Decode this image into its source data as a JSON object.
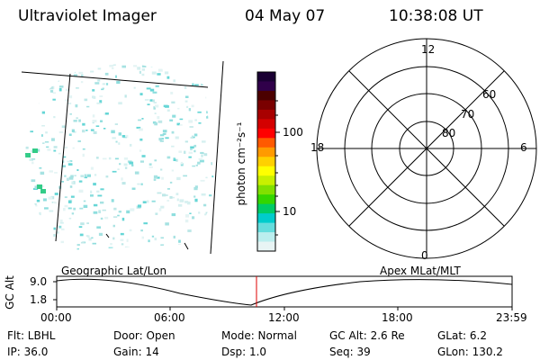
{
  "header": {
    "title": "Ultraviolet Imager",
    "date": "04 May 07",
    "time": "10:38:08 UT"
  },
  "colorbar": {
    "unit_label": "photon cm⁻²s⁻¹",
    "ticks": [
      "100",
      "10"
    ],
    "colors": [
      "#1a0033",
      "#30004a",
      "#4b0000",
      "#7a0000",
      "#a80000",
      "#d40000",
      "#ff0000",
      "#ff5a00",
      "#ff9a00",
      "#ffd000",
      "#ffff00",
      "#c8f000",
      "#80e000",
      "#33d600",
      "#00cc66",
      "#00cccc",
      "#66dddd",
      "#bbeeee",
      "#e8f4f4"
    ]
  },
  "polar": {
    "mlt_labels": {
      "top": "12",
      "left": "18",
      "right": "6",
      "bottom": "0"
    },
    "lat_labels": [
      "60",
      "70",
      "80"
    ]
  },
  "timeline": {
    "axis_title": "GC Alt",
    "y_labels": [
      "9.0",
      "1.8"
    ],
    "left_title": "Geographic Lat/Lon",
    "right_title": "Apex  MLat/MLT",
    "x_labels": [
      "00:00",
      "06:00",
      "12:00",
      "18:00",
      "23:59"
    ],
    "marker_color": "#dd0000"
  },
  "status": {
    "flt": "Flt: LBHL",
    "ip": "IP: 36.0",
    "door": "Door: Open",
    "gain": "Gain: 14",
    "mode": "Mode: Normal",
    "dsp": "Dsp:    1.0",
    "gcalt": "GC Alt: 2.6 Re",
    "seq": "Seq: 39",
    "glat": "GLat:    6.2",
    "glon": "GLon: 130.2"
  }
}
